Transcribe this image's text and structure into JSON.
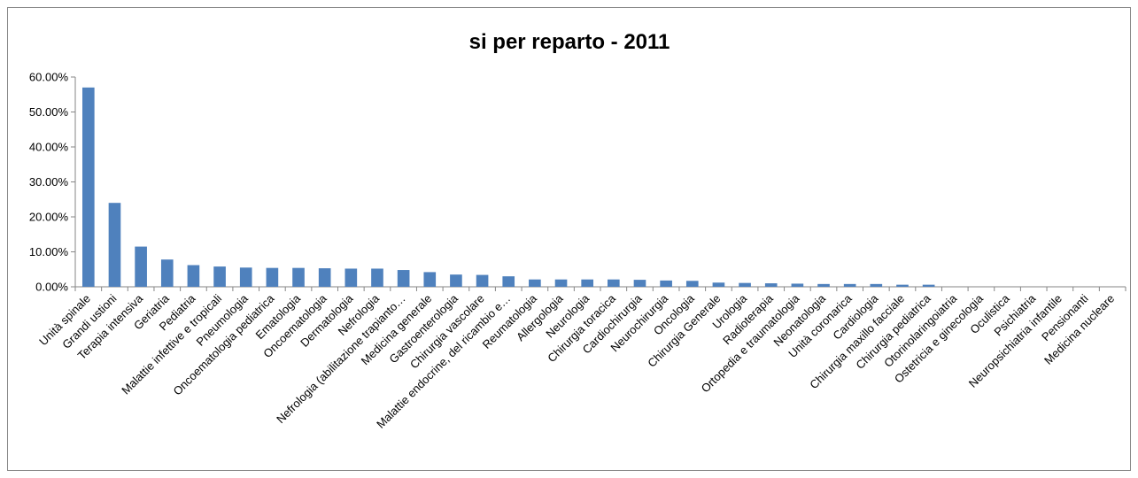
{
  "chart_data": {
    "type": "bar",
    "title": "si per reparto - 2011",
    "xlabel": "",
    "ylabel": "",
    "ylim": [
      0,
      60
    ],
    "yticks": [
      "0.00%",
      "10.00%",
      "20.00%",
      "30.00%",
      "40.00%",
      "50.00%",
      "60.00%"
    ],
    "grid": false,
    "legend": "none",
    "bar_color": "#4F81BD",
    "categories": [
      "Unità spinale",
      "Grandi ustioni",
      "Terapia intensiva",
      "Geriatria",
      "Pediatria",
      "Malattie infettive e tropicali",
      "Pneumologia",
      "Oncoematologia pediatrica",
      "Ematologia",
      "Oncoematologia",
      "Dermatologia",
      "Nefrologia",
      "Nefrologia (abilitazione trapianto…",
      "Medicina generale",
      "Gastroenterologia",
      "Chirurgia vascolare",
      "Malattie endocrine, del ricambio e…",
      "Reumatologia",
      "Allergologia",
      "Neurologia",
      "Chirurgia toracica",
      "Cardiochirurgia",
      "Neurochirurgia",
      "Oncologia",
      "Chirurgia Generale",
      "Urologia",
      "Radioterapia",
      "Ortopedia e traumatologia",
      "Neonatologia",
      "Unità coronarica",
      "Cardiologia",
      "Chirurgia maxillo facciale",
      "Chirurgia pediatrica",
      "Otorinolaringoiatria",
      "Ostetricia e ginecologia",
      "Oculistica",
      "Psichiatria",
      "Neuropsichiatria infantile",
      "Pensionanti",
      "Medicina nucleare"
    ],
    "values": [
      57.0,
      24.0,
      11.5,
      7.8,
      6.2,
      5.8,
      5.5,
      5.4,
      5.4,
      5.3,
      5.2,
      5.2,
      4.8,
      4.2,
      3.5,
      3.4,
      3.0,
      2.1,
      2.1,
      2.1,
      2.1,
      2.0,
      1.8,
      1.7,
      1.2,
      1.1,
      1.0,
      0.9,
      0.8,
      0.8,
      0.8,
      0.6,
      0.6,
      0.0,
      0.0,
      0.0,
      0.0,
      0.0,
      0.0,
      0.0
    ]
  }
}
